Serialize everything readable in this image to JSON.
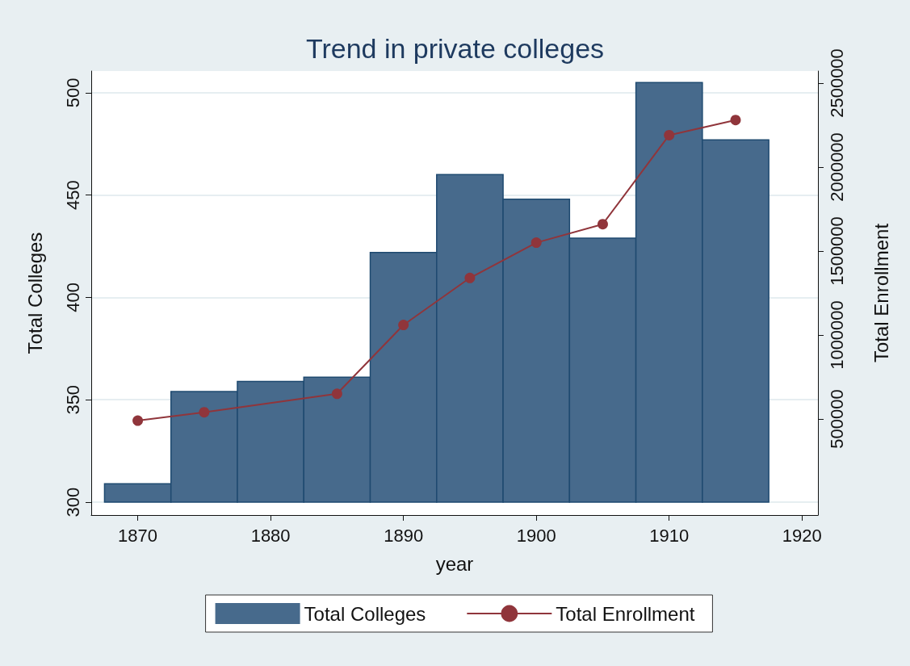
{
  "chart_data": {
    "type": "bar",
    "title": "Trend in private colleges",
    "xlabel": "year",
    "ylabel": "Total Colleges",
    "y2label": "Total Enrollment",
    "x": [
      1870,
      1875,
      1880,
      1885,
      1890,
      1895,
      1900,
      1905,
      1910,
      1915
    ],
    "series": [
      {
        "name": "Total Colleges",
        "color": "#476a8c",
        "base": [
          300,
          300,
          300,
          300,
          300,
          300,
          300,
          300,
          300,
          300
        ],
        "values": [
          9,
          54,
          59,
          61,
          122,
          160,
          148,
          129,
          205,
          177
        ]
      },
      {
        "name": "Total Enrollment",
        "type": "line",
        "axis": "y2",
        "color": "#90353b",
        "marker": "circle",
        "x": [
          1870,
          1875,
          1885,
          1890,
          1895,
          1900,
          1905,
          1910,
          1915
        ],
        "values": [
          490000,
          540000,
          650000,
          1060000,
          1340000,
          1550000,
          1660000,
          2190000,
          2280000
        ]
      }
    ],
    "xlim": [
      1866.5,
      1921.2
    ],
    "xticks": [
      1870,
      1880,
      1890,
      1900,
      1910,
      1920
    ],
    "ylim": [
      293.7,
      510.6
    ],
    "yticks": [
      300,
      350,
      400,
      450,
      500
    ],
    "y2lim": [
      -72000,
      2572000
    ],
    "y2ticks": [
      500000,
      1000000,
      1500000,
      2000000,
      2500000
    ],
    "grid": "y",
    "legend": "bottom"
  }
}
